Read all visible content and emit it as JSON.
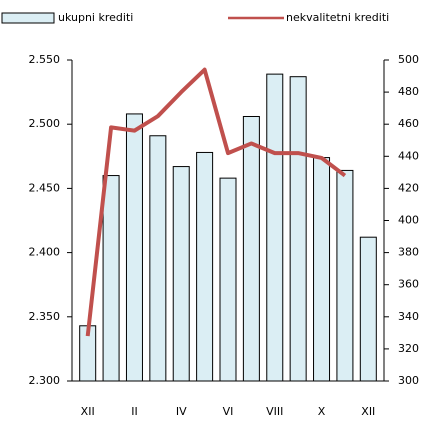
{
  "chart_data": {
    "type": "bar_line",
    "categories": [
      "XII",
      null,
      "II",
      null,
      "IV",
      null,
      "VI",
      null,
      "VIII",
      null,
      "X",
      null,
      "XII"
    ],
    "series": [
      {
        "name": "ukupni krediti",
        "type": "bar",
        "color": "#dbeef4",
        "values": [
          2.343,
          2.46,
          2.508,
          2.491,
          2.467,
          2.478,
          2.458,
          2.506,
          2.539,
          2.537,
          2.474,
          2.464,
          2.412
        ]
      },
      {
        "name": "nekvalitetni krediti",
        "type": "line",
        "axis": "y2",
        "color": "#c0504d",
        "values": [
          328,
          458,
          456,
          465,
          480,
          494,
          442,
          448,
          442,
          442,
          439,
          428,
          null
        ]
      }
    ],
    "ylim": [
      2.3,
      2.55
    ],
    "yticks": [
      {
        "value": 2.3,
        "label": "2.300"
      },
      {
        "value": 2.35,
        "label": "2.350"
      },
      {
        "value": 2.4,
        "label": "2.400"
      },
      {
        "value": 2.45,
        "label": "2.450"
      },
      {
        "value": 2.5,
        "label": "2.500"
      },
      {
        "value": 2.55,
        "label": "2.550"
      }
    ],
    "y2lim": [
      300,
      500
    ],
    "y2ticks": [
      300,
      320,
      340,
      360,
      380,
      400,
      420,
      440,
      460,
      480,
      500
    ],
    "legend": "top"
  }
}
